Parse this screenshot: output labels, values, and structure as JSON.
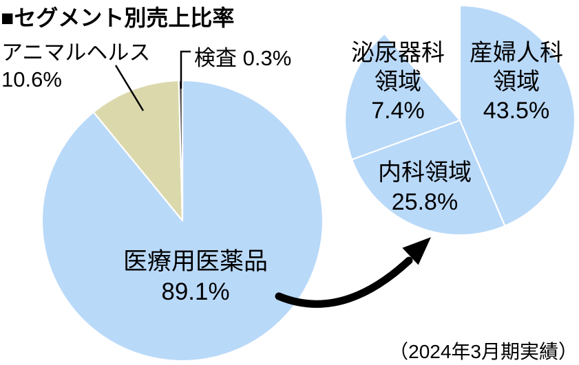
{
  "title": "■セグメント別売上比率",
  "caption": "（2024年3月期実績）",
  "colors": {
    "slice_blue": "#B9D9F9",
    "slice_olive": "#DBD9AB",
    "slice_dark": "#565656",
    "divider_white": "#FFFFFF",
    "text_black": "#000000",
    "arrow_black": "#000000"
  },
  "chart_data": [
    {
      "type": "pie",
      "title": "セグメント別売上比率",
      "unit": "%",
      "start_deg": 0,
      "slices": [
        {
          "label": "医療用医薬品",
          "value": 89.1,
          "color": "#B9D9F9",
          "display_sweep_deg": 320.7
        },
        {
          "label": "アニマルヘルス",
          "value": 10.6,
          "color": "#DBD9AB",
          "display_sweep_deg": 37.8
        },
        {
          "label": "検査",
          "value": 0.3,
          "color": "#565656",
          "display_sweep_deg": 1.5
        }
      ]
    },
    {
      "type": "pie",
      "unit": "%",
      "start_deg": 0,
      "notch_gap_deg": 41,
      "slices": [
        {
          "label": "産婦人科領域",
          "value": 43.5,
          "color": "#B9D9F9",
          "display_sweep_deg": 157
        },
        {
          "label": "内科領域",
          "value": 25.8,
          "color": "#B9D9F9",
          "display_sweep_deg": 93
        },
        {
          "label": "泌尿器科領域",
          "value": 7.4,
          "color": "#B9D9F9",
          "display_sweep_deg": 69
        }
      ]
    }
  ],
  "labels": {
    "animal_health": {
      "line1": "アニマルヘルス",
      "line2": "10.6%"
    },
    "inspection": {
      "text": "検査 0.3%"
    },
    "pharma_center": {
      "line1": "医療用医薬品",
      "line2": "89.1%"
    },
    "urology": {
      "line1": "泌尿器科",
      "line2": "領域",
      "line3": "7.4%"
    },
    "obgyn": {
      "line1": "産婦人科",
      "line2": "領域",
      "line3": "43.5%"
    },
    "internal_medicine": {
      "line1": "内科領域",
      "line2": "25.8%"
    }
  }
}
